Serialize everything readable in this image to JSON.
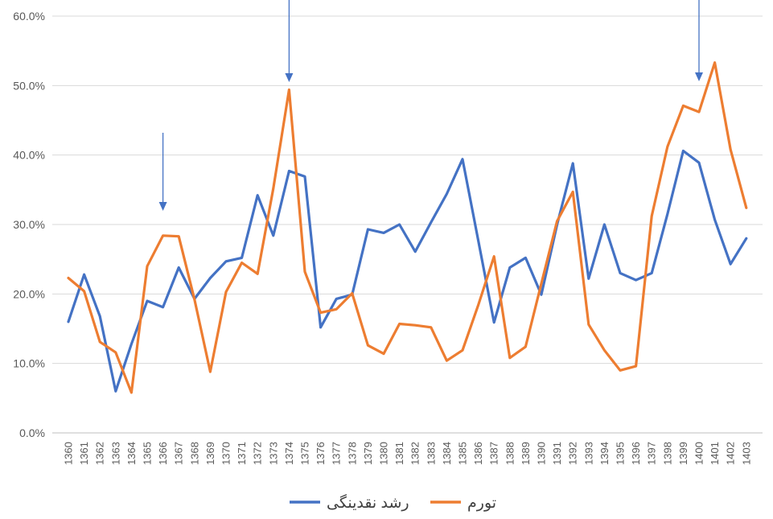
{
  "chart_data": {
    "type": "line",
    "categories": [
      "1360",
      "1361",
      "1362",
      "1363",
      "1364",
      "1365",
      "1366",
      "1367",
      "1368",
      "1369",
      "1370",
      "1371",
      "1372",
      "1373",
      "1374",
      "1375",
      "1376",
      "1377",
      "1378",
      "1379",
      "1380",
      "1381",
      "1382",
      "1383",
      "1384",
      "1385",
      "1386",
      "1387",
      "1388",
      "1389",
      "1390",
      "1391",
      "1392",
      "1393",
      "1394",
      "1395",
      "1396",
      "1397",
      "1398",
      "1399",
      "1400",
      "1401",
      "1402",
      "1403"
    ],
    "series": [
      {
        "name": "رشد نقدینگی",
        "color": "#4472C4",
        "values": [
          16.0,
          22.8,
          16.8,
          6.0,
          12.8,
          19.0,
          18.1,
          23.8,
          19.3,
          22.3,
          24.7,
          25.2,
          34.2,
          28.4,
          37.7,
          36.9,
          15.2,
          19.3,
          19.9,
          29.3,
          28.8,
          30.0,
          26.1,
          30.3,
          34.4,
          39.4,
          27.7,
          15.9,
          23.8,
          25.2,
          19.9,
          30.0,
          38.8,
          22.2,
          30.0,
          23.0,
          22.0,
          23.0,
          31.5,
          40.6,
          38.9,
          30.7,
          24.3,
          28.0
        ]
      },
      {
        "name": "تورم",
        "color": "#ED7D31",
        "values": [
          22.3,
          20.4,
          13.1,
          11.6,
          5.8,
          24.0,
          28.4,
          28.3,
          19.2,
          8.8,
          20.3,
          24.5,
          22.9,
          35.2,
          49.4,
          23.2,
          17.3,
          17.8,
          20.1,
          12.6,
          11.4,
          15.7,
          15.5,
          15.2,
          10.4,
          11.9,
          18.4,
          25.4,
          10.8,
          12.4,
          21.5,
          30.5,
          34.7,
          15.6,
          11.9,
          9.0,
          9.6,
          31.2,
          41.2,
          47.1,
          46.2,
          53.3,
          40.8,
          32.4
        ]
      }
    ],
    "y_ticks": [
      "0.0%",
      "10.0%",
      "20.0%",
      "30.0%",
      "40.0%",
      "50.0%",
      "60.0%"
    ],
    "ylim": [
      0,
      60
    ],
    "grid": true,
    "legend_position": "bottom",
    "annotations": [
      {
        "type": "arrow",
        "category": "1366"
      },
      {
        "type": "arrow",
        "category": "1374"
      },
      {
        "type": "arrow",
        "category": "1400"
      }
    ],
    "annotation_color": "#4472C4"
  }
}
